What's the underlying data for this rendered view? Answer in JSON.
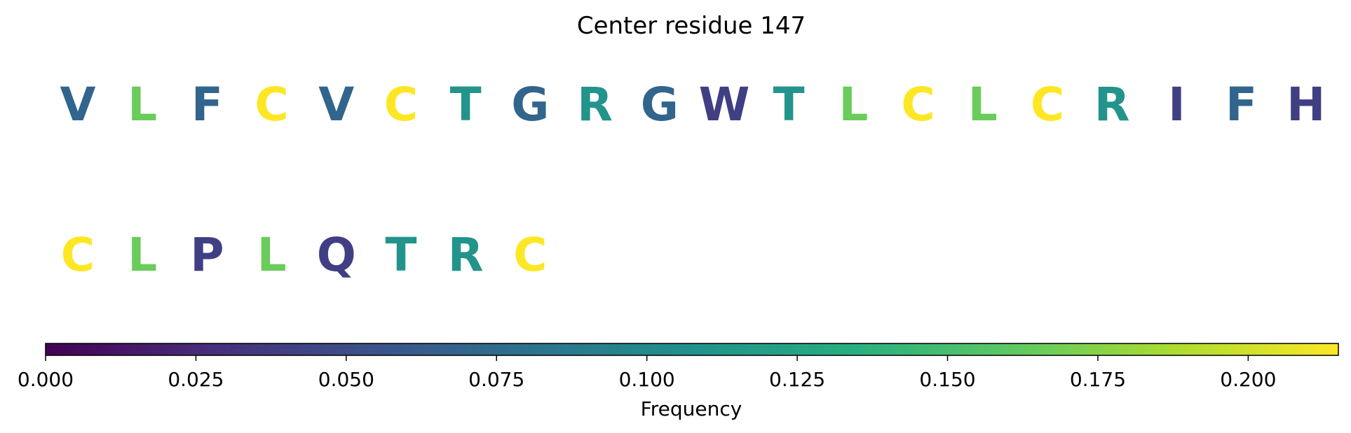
{
  "chart_data": {
    "type": "heatmap",
    "title": "Center residue 147",
    "rows": [
      {
        "residues": [
          "V",
          "L",
          "F",
          "C",
          "V",
          "C",
          "T",
          "G",
          "R",
          "G",
          "W",
          "T",
          "L",
          "C",
          "L",
          "C",
          "R",
          "I",
          "F",
          "H"
        ],
        "frequencies": [
          0.07,
          0.165,
          0.07,
          0.215,
          0.07,
          0.215,
          0.11,
          0.07,
          0.11,
          0.07,
          0.04,
          0.11,
          0.165,
          0.215,
          0.165,
          0.215,
          0.11,
          0.04,
          0.07,
          0.04
        ]
      },
      {
        "residues": [
          "C",
          "L",
          "P",
          "L",
          "Q",
          "T",
          "R",
          "C"
        ],
        "frequencies": [
          0.215,
          0.165,
          0.04,
          0.165,
          0.04,
          0.11,
          0.11,
          0.215
        ]
      }
    ],
    "colorbar": {
      "label": "Frequency",
      "range": [
        0,
        0.215
      ],
      "colormap": "viridis",
      "ticks": [
        0.0,
        0.025,
        0.05,
        0.075,
        0.1,
        0.125,
        0.15,
        0.175,
        0.2
      ],
      "tick_labels": [
        "0.000",
        "0.025",
        "0.050",
        "0.075",
        "0.100",
        "0.125",
        "0.150",
        "0.175",
        "0.200"
      ]
    }
  }
}
